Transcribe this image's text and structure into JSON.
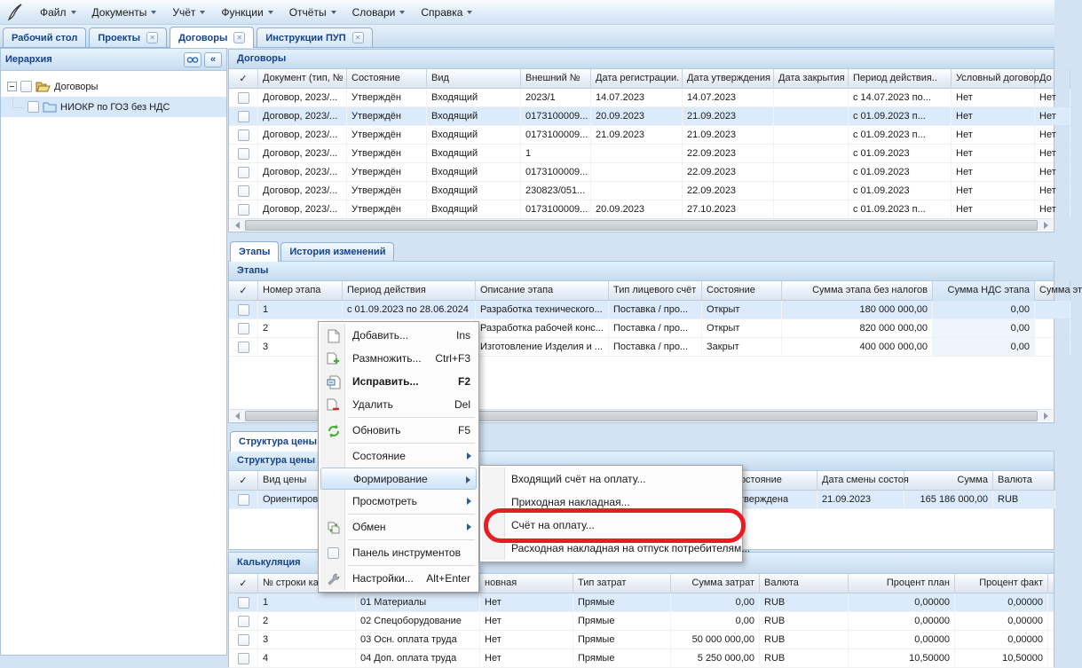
{
  "icons": {
    "close": "✕",
    "collapse": "«"
  },
  "colors": {
    "accent": "#15428b",
    "selection": "#dcebfb",
    "annotation_red": "#e81c22"
  },
  "menubar": {
    "items": [
      "Файл",
      "Документы",
      "Учёт",
      "Функции",
      "Отчёты",
      "Словари",
      "Справка"
    ]
  },
  "tabs": {
    "items": [
      {
        "label": "Рабочий стол"
      },
      {
        "label": "Проекты"
      },
      {
        "label": "Договоры"
      },
      {
        "label": "Инструкции ПУП"
      }
    ]
  },
  "sidebar": {
    "title": "Иерархия",
    "root_node": "Договоры",
    "child_node": "НИОКР по ГОЗ без НДС"
  },
  "contracts": {
    "panel_title": "Договоры",
    "columns": [
      "✓",
      "Документ (тип, №",
      "Состояние",
      "Вид",
      "Внешний №",
      "Дата регистрации.",
      "Дата утверждения",
      "Дата закрытия",
      "Период действия..",
      "Условный договор",
      "До"
    ],
    "rows": [
      [
        "",
        "Договор, 2023/...",
        "Утверждён",
        "Входящий",
        "2023/1",
        "14.07.2023",
        "14.07.2023",
        "",
        "с 14.07.2023 по...",
        "Нет",
        "Нет"
      ],
      [
        "",
        "Договор, 2023/...",
        "Утверждён",
        "Входящий",
        "0173100009...",
        "20.09.2023",
        "21.09.2023",
        "",
        "с 01.09.2023 п...",
        "Нет",
        "Нет"
      ],
      [
        "",
        "Договор, 2023/...",
        "Утверждён",
        "Входящий",
        "0173100009...",
        "21.09.2023",
        "21.09.2023",
        "",
        "с 01.09.2023 п...",
        "Нет",
        "Нет"
      ],
      [
        "",
        "Договор, 2023/...",
        "Утверждён",
        "Входящий",
        "1",
        "",
        "22.09.2023",
        "",
        "с 01.09.2023",
        "Нет",
        "Нет"
      ],
      [
        "",
        "Договор, 2023/...",
        "Утверждён",
        "Входящий",
        "0173100009...",
        "",
        "22.09.2023",
        "",
        "с 01.09.2023",
        "Нет",
        "Нет"
      ],
      [
        "",
        "Договор, 2023/...",
        "Утверждён",
        "Входящий",
        "230823/051...",
        "",
        "22.09.2023",
        "",
        "с 01.09.2023",
        "Нет",
        "Нет"
      ],
      [
        "",
        "Договор, 2023/...",
        "Утверждён",
        "Входящий",
        "0173100009...",
        "20.09.2023",
        "27.10.2023",
        "",
        "с 01.09.2023 п...",
        "Нет",
        "Нет"
      ]
    ],
    "selected_row": 1
  },
  "stages_tabs": {
    "items": [
      "Этапы",
      "История изменений"
    ]
  },
  "stages": {
    "panel_title": "Этапы",
    "columns": [
      "✓",
      "Номер этапа",
      "Период действия",
      "Описание этапа",
      "Тип лицевого счёт",
      "Состояние",
      "Сумма этапа без налогов",
      "Сумма НДС этапа",
      "Сумма эт"
    ],
    "rows": [
      [
        "",
        "1",
        "с 01.09.2023 по 28.06.2024",
        "Разработка технического...",
        "Поставка / про...",
        "Открыт",
        "180 000 000,00",
        "0,00",
        ""
      ],
      [
        "",
        "2",
        "",
        "Разработка рабочей конс...",
        "Поставка / про...",
        "Открыт",
        "820 000 000,00",
        "0,00",
        ""
      ],
      [
        "",
        "3",
        "",
        "Изготовление Изделия и ...",
        "Поставка / про...",
        "Закрыт",
        "400 000 000,00",
        "0,00",
        ""
      ]
    ],
    "selected_row": 0
  },
  "price_tab": "Структура цены",
  "price": {
    "panel_title": "Структура цены",
    "columns": [
      "✓",
      "Вид цены",
      "",
      "Состояние",
      "Дата смены состоя",
      "Сумма",
      "Валюта"
    ],
    "rows": [
      [
        "",
        "Ориентировоч...",
        "",
        "Утверждена",
        "21.09.2023",
        "165 186 000,00",
        "RUB"
      ]
    ],
    "selected_row": 0
  },
  "calc": {
    "panel_title": "Калькуляция",
    "columns": [
      "✓",
      "№ строки кал...",
      "",
      "новная",
      "Тип затрат",
      "Сумма затрат",
      "Валюта",
      "Процент план",
      "Процент факт"
    ],
    "rows": [
      [
        "",
        "1",
        "01 Материалы",
        "Нет",
        "Прямые",
        "0,00",
        "RUB",
        "0,00000",
        "0,00000"
      ],
      [
        "",
        "2",
        "02 Спецоборудование",
        "Нет",
        "Прямые",
        "0,00",
        "RUB",
        "0,00000",
        "0,00000"
      ],
      [
        "",
        "3",
        "03 Осн. оплата труда",
        "Нет",
        "Прямые",
        "50 000 000,00",
        "RUB",
        "0,00000",
        "0,00000"
      ],
      [
        "",
        "4",
        "04 Доп. оплата труда",
        "Нет",
        "Прямые",
        "5 250 000,00",
        "RUB",
        "10,50000",
        "10,50000"
      ]
    ],
    "selected_row": 0
  },
  "context_menu": {
    "items": [
      {
        "label": "Добавить...",
        "shortcut": "Ins"
      },
      {
        "label": "Размножить...",
        "shortcut": "Ctrl+F3"
      },
      {
        "label": "Исправить...",
        "shortcut": "F2"
      },
      {
        "label": "Удалить",
        "shortcut": "Del"
      },
      {
        "label": "Обновить",
        "shortcut": "F5"
      },
      {
        "label": "Состояние",
        "shortcut": ""
      },
      {
        "label": "Формирование",
        "shortcut": ""
      },
      {
        "label": "Просмотреть",
        "shortcut": ""
      },
      {
        "label": "Обмен",
        "shortcut": ""
      },
      {
        "label": "Панель инструментов",
        "shortcut": ""
      },
      {
        "label": "Настройки...",
        "shortcut": "Alt+Enter"
      }
    ]
  },
  "submenu": {
    "items": [
      "Входящий счёт на оплату...",
      "Приходная накладная...",
      "Счёт на оплату...",
      "Расходная накладная на отпуск потребителям..."
    ],
    "annotated_item": "Счёт на оплату..."
  }
}
